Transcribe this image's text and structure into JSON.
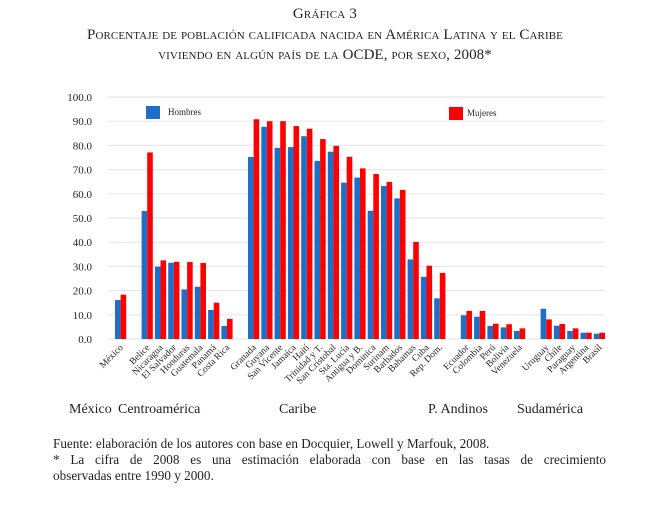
{
  "header": {
    "label": "Gráfica 3",
    "title_line1": "Porcentaje de población calificada nacida en América Latina y el Caribe",
    "title_line2": "viviendo en algún país de la OCDE, por sexo, 2008*"
  },
  "regions": {
    "mexico": "México",
    "centroamerica": "Centroamérica",
    "caribe": "Caribe",
    "andinos": "P. Andinos",
    "sudamerica": "Sudamérica"
  },
  "footer": {
    "source": "Fuente: elaboración de los autores con base en Docquier, Lowell y Marfouk, 2008.",
    "note_line1": "* La cifra de 2008 es una estimación elaborada con base en las tasas de crecimiento",
    "note_line2": "observadas entre 1990 y 2000."
  },
  "colors": {
    "hombres": "#1f6fc8",
    "mujeres": "#ff0000",
    "grid": "#e8e8e8"
  },
  "chart_data": {
    "type": "bar",
    "title": "Porcentaje de población calificada nacida en América Latina y el Caribe viviendo en algún país de la OCDE, por sexo, 2008*",
    "xlabel": "",
    "ylabel": "",
    "ylim": [
      0,
      100
    ],
    "yticks": [
      "0.0",
      "10.0",
      "20.0",
      "30.0",
      "40.0",
      "50.0",
      "60.0",
      "70.0",
      "80.0",
      "90.0",
      "100.0"
    ],
    "grid": true,
    "legend": [
      "Hombres",
      "Mujeres"
    ],
    "legend_placement": "top (split: Hombres top-left, Mujeres top-right)",
    "categories": [
      "México",
      "Belice",
      "Nicaragua",
      "El Salvador",
      "Honduras",
      "Guatemala",
      "Panamá",
      "Costa Rica",
      "Granada",
      "Guyana",
      "San Vicente",
      "Jamaica",
      "Haití",
      "Trinidad y T.",
      "San Cristobal",
      "Sta. Lucía",
      "Antigua y B.",
      "Dominica",
      "Surinam",
      "Barbados",
      "Bahamas",
      "Cuba",
      "Rep. Dom.",
      "Ecuador",
      "Colombia",
      "Perú",
      "Bolivia",
      "Venezuela",
      "Uruguay",
      "Chile",
      "Paraguay",
      "Argentina",
      "Brasil"
    ],
    "groups": [
      {
        "name": "México",
        "count": 1
      },
      {
        "name": "Centroamérica",
        "count": 7
      },
      {
        "name": "Caribe",
        "count": 15
      },
      {
        "name": "P. Andinos",
        "count": 5
      },
      {
        "name": "Sudamérica",
        "count": 5
      }
    ],
    "series": [
      {
        "name": "Hombres",
        "values": [
          16.1,
          52.9,
          29.9,
          31.5,
          20.5,
          21.6,
          12.0,
          5.4,
          75.2,
          87.7,
          79.0,
          79.3,
          83.8,
          73.6,
          77.4,
          64.6,
          66.7,
          53.0,
          63.2,
          58.1,
          32.9,
          25.7,
          16.8,
          9.8,
          9.2,
          5.4,
          4.8,
          3.3,
          12.5,
          5.5,
          3.3,
          2.6,
          2.2
        ]
      },
      {
        "name": "Mujeres",
        "values": [
          18.3,
          77.1,
          32.5,
          31.9,
          31.8,
          31.4,
          15.0,
          8.3,
          90.8,
          90.0,
          90.0,
          88.0,
          86.9,
          82.6,
          79.8,
          75.3,
          70.5,
          68.2,
          64.9,
          61.6,
          40.1,
          30.3,
          27.3,
          11.6,
          11.6,
          6.3,
          6.1,
          4.4,
          8.1,
          6.2,
          4.4,
          2.6,
          2.6
        ]
      }
    ]
  }
}
